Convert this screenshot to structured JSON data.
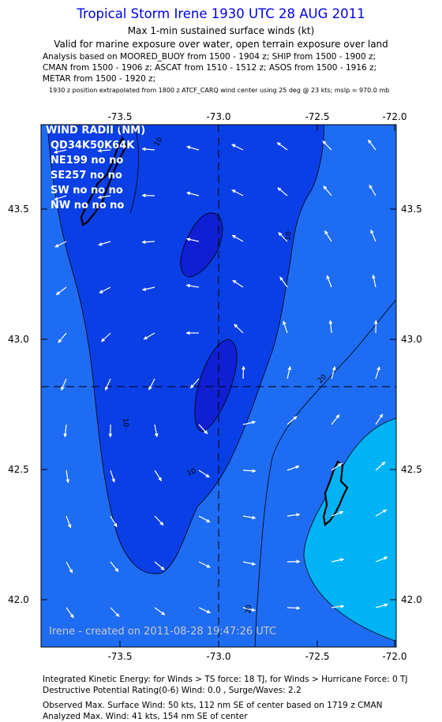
{
  "header": {
    "title": "Tropical Storm Irene 1930 UTC 28 AUG 2011",
    "subtitle1": "Max 1-min sustained surface winds (kt)",
    "subtitle2": "Valid for marine exposure over water, open terrain exposure over land",
    "analysis_lines": [
      "Analysis based on MOORED_BUOY from 1500 - 1904 z; SHIP from 1500 - 1900 z;",
      "CMAN from 1500 - 1906 z; ASCAT from 1510 - 1512 z; ASOS from 1500 - 1916 z;",
      "METAR from 1500 - 1920 z;"
    ],
    "position_note": "1930 z position extrapolated from 1800 z ATCF_CARQ wind center using 25 deg @ 23 kts; mslp = 970.0 mb"
  },
  "map": {
    "x_ticks": [
      "-73.5",
      "-73.0",
      "-72.5",
      "-72.0"
    ],
    "y_ticks": [
      "43.5",
      "43.0",
      "42.5",
      "42.0"
    ],
    "contour_labels": [
      "10",
      "10",
      "10",
      "10",
      "20",
      "20"
    ],
    "wind_radii": {
      "title": "WIND RADII (NM)",
      "header": "QD34K50K64K",
      "rows": [
        "NE199 no no",
        "SE257 no no",
        "SW no no no",
        "NW no no no"
      ]
    },
    "credit": "Irene - created on 2011-08-28 19:47:26 UTC",
    "colors": {
      "band_lt10": "#0a3fe6",
      "band_10_20": "#1e6cf2",
      "band_20_30": "#00b3f5",
      "band_ge30": "#0f1fd1",
      "arrow": "#ffffff",
      "land": "#000000",
      "title": "#0000e6"
    }
  },
  "footer": {
    "ike": "Integrated Kinetic Energy:  for Winds > TS force: 18 TJ,  for Winds > Hurricane Force: 0 TJ",
    "dpr": "Destructive Potential Rating(0-6)   Wind: 0.0 , Surge/Waves: 2.2",
    "obs_max": "Observed Max. Surface Wind: 50 kts, 112 nm SE of center based on 1719 z CMAN",
    "ana_max": "Analyzed Max. Wind: 41 kts, 154 nm SE of center"
  }
}
